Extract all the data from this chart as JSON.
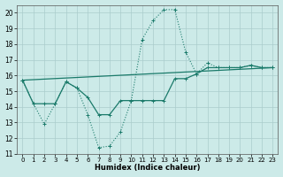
{
  "xlabel": "Humidex (Indice chaleur)",
  "background_color": "#cceae8",
  "grid_color": "#aacccc",
  "line_color": "#1a7a6a",
  "xlim": [
    -0.5,
    23.5
  ],
  "ylim": [
    11,
    20.5
  ],
  "xticks": [
    0,
    1,
    2,
    3,
    4,
    5,
    6,
    7,
    8,
    9,
    10,
    11,
    12,
    13,
    14,
    15,
    16,
    17,
    18,
    19,
    20,
    21,
    22,
    23
  ],
  "yticks": [
    11,
    12,
    13,
    14,
    15,
    16,
    17,
    18,
    19,
    20
  ],
  "line_dotted_x": [
    0,
    1,
    2,
    3,
    4,
    5,
    6,
    7,
    8,
    9,
    10,
    11,
    12,
    13,
    14,
    15,
    16,
    17,
    18,
    19,
    20,
    21,
    22,
    23
  ],
  "line_dotted_y": [
    15.7,
    14.2,
    12.9,
    14.2,
    15.6,
    15.2,
    13.5,
    11.4,
    11.5,
    12.4,
    14.4,
    18.3,
    19.5,
    20.2,
    20.2,
    17.5,
    16.1,
    16.8,
    16.5,
    16.5,
    16.5,
    16.65,
    16.5,
    16.5
  ],
  "line_solid_x": [
    0,
    1,
    2,
    3,
    4,
    5,
    6,
    7,
    8,
    9,
    10,
    11,
    12,
    13,
    14,
    15,
    16,
    17,
    18,
    19,
    20,
    21,
    22,
    23
  ],
  "line_solid_y": [
    15.7,
    14.2,
    14.2,
    14.2,
    15.6,
    15.2,
    14.6,
    13.5,
    13.5,
    14.4,
    14.4,
    14.4,
    14.4,
    14.4,
    15.8,
    15.8,
    16.1,
    16.5,
    16.5,
    16.5,
    16.5,
    16.65,
    16.5,
    16.5
  ],
  "line_trend_x": [
    0,
    23
  ],
  "line_trend_y": [
    15.7,
    16.5
  ]
}
